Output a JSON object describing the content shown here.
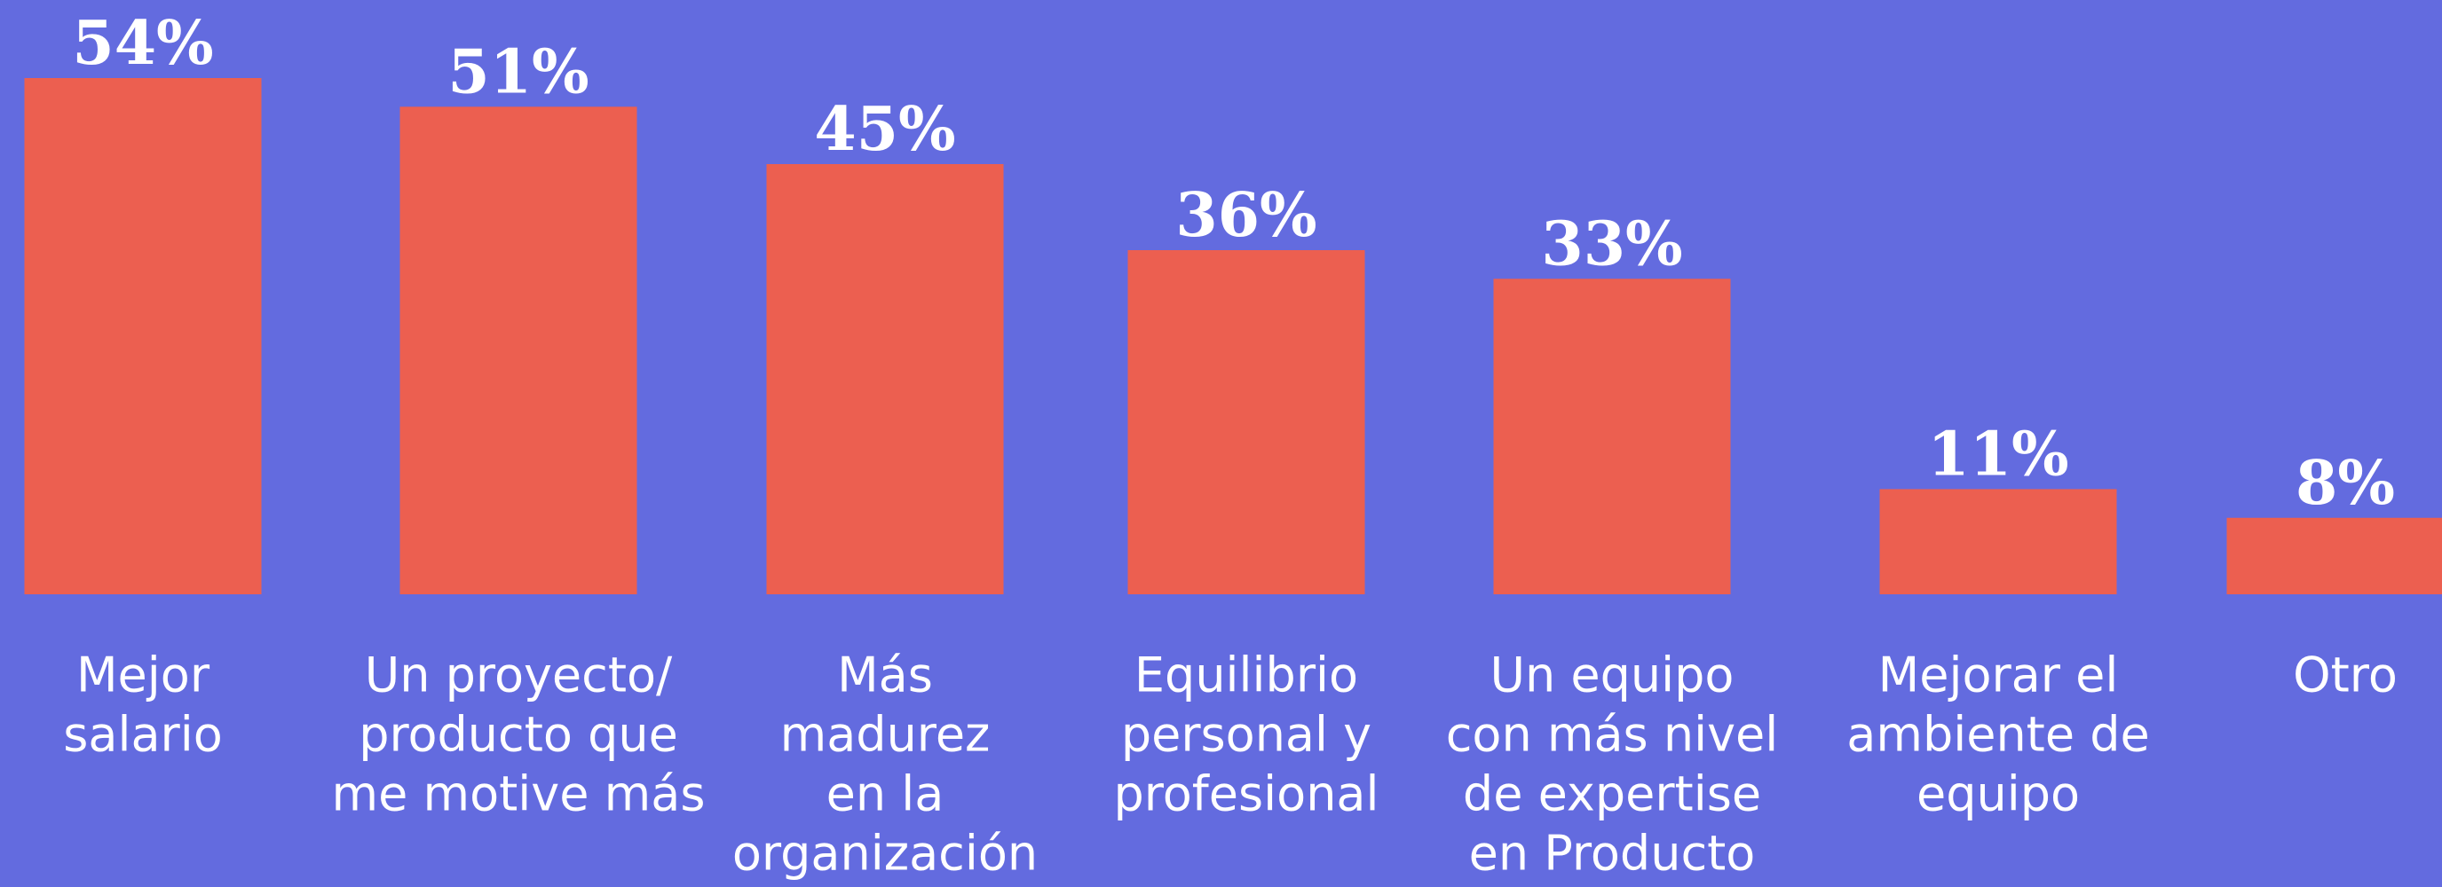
{
  "chart_data": {
    "type": "bar",
    "categories": [
      [
        "Mejor",
        "salario"
      ],
      [
        "Un proyecto/",
        "producto que",
        "me motive más"
      ],
      [
        "Más",
        "madurez",
        "en la",
        "organización"
      ],
      [
        "Equilibrio",
        "personal y",
        "profesional"
      ],
      [
        "Un equipo",
        "con más nivel",
        "de expertise",
        "en Producto"
      ],
      [
        "Mejorar el",
        "ambiente de",
        "equipo"
      ],
      [
        "Otro"
      ]
    ],
    "values": [
      54,
      51,
      45,
      36,
      33,
      11,
      8
    ],
    "value_labels": [
      "54%",
      "51%",
      "45%",
      "36%",
      "33%",
      "11%",
      "8%"
    ],
    "color": "#ec5f50"
  }
}
